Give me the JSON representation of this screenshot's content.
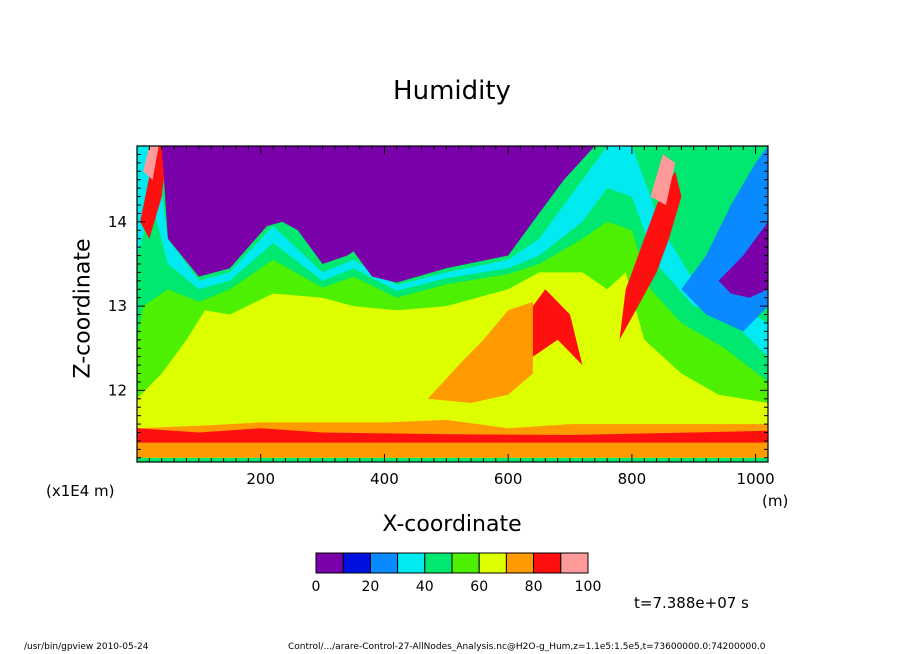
{
  "chart_data": {
    "type": "heatmap",
    "title": "Humidity",
    "xlabel": "X-coordinate",
    "ylabel": "Z-coordinate",
    "x_unit": "(m)",
    "y_unit": "(x1E4 m)",
    "xlim": [
      0,
      1020
    ],
    "ylim": [
      11.15,
      14.9
    ],
    "x_ticks": [
      200,
      400,
      600,
      800,
      1000
    ],
    "y_ticks": [
      12,
      13,
      14
    ],
    "colorbar": {
      "levels": [
        0,
        10,
        20,
        30,
        40,
        50,
        60,
        70,
        80,
        90,
        100
      ],
      "tick_labels": [
        "0",
        "20",
        "40",
        "60",
        "80",
        "100"
      ],
      "colors": [
        "#7a00aa",
        "#0010e0",
        "#0a8aff",
        "#00eaf0",
        "#00e870",
        "#4cf000",
        "#ddff00",
        "#ff9a00",
        "#ff1010",
        "#ff9a9a"
      ]
    },
    "regions": [
      {
        "level": 30,
        "points": [
          [
            0,
            11.2
          ],
          [
            1020,
            11.2
          ],
          [
            1020,
            12.8
          ],
          [
            900,
            13.3
          ],
          [
            850,
            13.9
          ],
          [
            800,
            14.9
          ],
          [
            760,
            14.9
          ],
          [
            720,
            14.5
          ],
          [
            650,
            13.8
          ],
          [
            600,
            13.55
          ],
          [
            500,
            13.4
          ],
          [
            420,
            13.25
          ],
          [
            350,
            13.55
          ],
          [
            300,
            13.4
          ],
          [
            220,
            13.95
          ],
          [
            150,
            13.4
          ],
          [
            100,
            13.3
          ],
          [
            50,
            13.8
          ],
          [
            30,
            14.9
          ],
          [
            0,
            14.9
          ]
        ]
      },
      {
        "level": 40,
        "points": [
          [
            0,
            11.2
          ],
          [
            1020,
            11.2
          ],
          [
            1020,
            12.4
          ],
          [
            950,
            12.9
          ],
          [
            900,
            13.0
          ],
          [
            840,
            13.5
          ],
          [
            800,
            14.3
          ],
          [
            760,
            14.4
          ],
          [
            720,
            14.0
          ],
          [
            650,
            13.6
          ],
          [
            600,
            13.45
          ],
          [
            500,
            13.33
          ],
          [
            420,
            13.18
          ],
          [
            350,
            13.45
          ],
          [
            300,
            13.3
          ],
          [
            220,
            13.75
          ],
          [
            150,
            13.3
          ],
          [
            100,
            13.2
          ],
          [
            50,
            13.5
          ],
          [
            25,
            14.2
          ],
          [
            0,
            13.6
          ]
        ]
      },
      {
        "level": 50,
        "points": [
          [
            0,
            11.2
          ],
          [
            1020,
            11.2
          ],
          [
            1020,
            12.1
          ],
          [
            950,
            12.5
          ],
          [
            880,
            12.8
          ],
          [
            830,
            13.2
          ],
          [
            800,
            13.9
          ],
          [
            760,
            14.0
          ],
          [
            720,
            13.8
          ],
          [
            650,
            13.5
          ],
          [
            600,
            13.38
          ],
          [
            500,
            13.26
          ],
          [
            420,
            13.1
          ],
          [
            350,
            13.35
          ],
          [
            300,
            13.22
          ],
          [
            220,
            13.55
          ],
          [
            150,
            13.2
          ],
          [
            100,
            13.05
          ],
          [
            50,
            13.2
          ],
          [
            10,
            13.0
          ],
          [
            0,
            12.6
          ]
        ]
      },
      {
        "level": 60,
        "points": [
          [
            0,
            11.2
          ],
          [
            1020,
            11.2
          ],
          [
            1020,
            11.85
          ],
          [
            940,
            11.95
          ],
          [
            880,
            12.2
          ],
          [
            820,
            12.6
          ],
          [
            790,
            13.4
          ],
          [
            760,
            13.2
          ],
          [
            720,
            13.4
          ],
          [
            650,
            13.4
          ],
          [
            600,
            13.2
          ],
          [
            500,
            13.0
          ],
          [
            420,
            12.95
          ],
          [
            350,
            13.0
          ],
          [
            300,
            13.1
          ],
          [
            220,
            13.15
          ],
          [
            150,
            12.9
          ],
          [
            110,
            12.95
          ],
          [
            80,
            12.6
          ],
          [
            40,
            12.2
          ],
          [
            0,
            11.9
          ]
        ]
      },
      {
        "level": 70,
        "points": [
          [
            0,
            11.2
          ],
          [
            1020,
            11.2
          ],
          [
            1020,
            11.6
          ],
          [
            800,
            11.6
          ],
          [
            700,
            11.6
          ],
          [
            600,
            11.55
          ],
          [
            500,
            11.65
          ],
          [
            400,
            11.62
          ],
          [
            300,
            11.62
          ],
          [
            200,
            11.62
          ],
          [
            100,
            11.58
          ],
          [
            0,
            11.55
          ]
        ]
      },
      {
        "level": 70,
        "points": [
          [
            470,
            11.9
          ],
          [
            520,
            12.3
          ],
          [
            560,
            12.6
          ],
          [
            600,
            12.95
          ],
          [
            640,
            13.05
          ],
          [
            640,
            12.2
          ],
          [
            600,
            11.95
          ],
          [
            540,
            11.85
          ]
        ]
      },
      {
        "level": 80,
        "points": [
          [
            0,
            11.38
          ],
          [
            1020,
            11.38
          ],
          [
            1020,
            11.52
          ],
          [
            900,
            11.5
          ],
          [
            700,
            11.47
          ],
          [
            500,
            11.48
          ],
          [
            300,
            11.5
          ],
          [
            200,
            11.55
          ],
          [
            100,
            11.5
          ],
          [
            0,
            11.55
          ]
        ]
      },
      {
        "level": 80,
        "points": [
          [
            640,
            12.4
          ],
          [
            680,
            12.6
          ],
          [
            720,
            12.3
          ],
          [
            700,
            12.9
          ],
          [
            660,
            13.2
          ],
          [
            640,
            13.0
          ]
        ]
      },
      {
        "level": 80,
        "points": [
          [
            780,
            12.6
          ],
          [
            810,
            13.0
          ],
          [
            840,
            13.4
          ],
          [
            860,
            13.8
          ],
          [
            880,
            14.3
          ],
          [
            870,
            14.6
          ],
          [
            840,
            14.2
          ],
          [
            810,
            13.6
          ],
          [
            790,
            13.2
          ]
        ]
      },
      {
        "level": 80,
        "points": [
          [
            5,
            14.0
          ],
          [
            30,
            14.9
          ],
          [
            50,
            14.9
          ],
          [
            40,
            14.3
          ],
          [
            20,
            13.8
          ]
        ]
      },
      {
        "level": 90,
        "points": [
          [
            10,
            14.6
          ],
          [
            20,
            14.9
          ],
          [
            35,
            14.9
          ],
          [
            25,
            14.5
          ]
        ]
      },
      {
        "level": 90,
        "points": [
          [
            830,
            14.3
          ],
          [
            850,
            14.8
          ],
          [
            870,
            14.7
          ],
          [
            855,
            14.2
          ]
        ]
      },
      {
        "level": 20,
        "points": [
          [
            880,
            13.2
          ],
          [
            920,
            13.6
          ],
          [
            960,
            14.2
          ],
          [
            1000,
            14.7
          ],
          [
            1020,
            14.9
          ],
          [
            1020,
            13.0
          ],
          [
            980,
            12.7
          ],
          [
            920,
            12.9
          ]
        ]
      },
      {
        "level": 0,
        "points": [
          [
            940,
            13.3
          ],
          [
            980,
            13.6
          ],
          [
            1010,
            13.9
          ],
          [
            1020,
            14.0
          ],
          [
            1020,
            13.2
          ],
          [
            990,
            13.1
          ],
          [
            960,
            13.15
          ]
        ]
      },
      {
        "level": 0,
        "points": [
          [
            40,
            14.9
          ],
          [
            50,
            13.8
          ],
          [
            100,
            13.35
          ],
          [
            150,
            13.45
          ],
          [
            210,
            13.95
          ],
          [
            235,
            14.0
          ],
          [
            260,
            13.9
          ],
          [
            300,
            13.5
          ],
          [
            340,
            13.6
          ],
          [
            350,
            13.65
          ],
          [
            380,
            13.35
          ],
          [
            420,
            13.28
          ],
          [
            500,
            13.45
          ],
          [
            600,
            13.6
          ],
          [
            640,
            14.0
          ],
          [
            690,
            14.5
          ],
          [
            740,
            14.9
          ]
        ]
      }
    ]
  },
  "time_label": "t=7.388e+07 s",
  "footer_left": "/usr/bin/gpview   2010-05-24",
  "footer_right": "Control/.../arare-Control-27-AllNodes_Analysis.nc@H2O-g_Hum,z=1.1e5:1.5e5,t=73600000.0:74200000.0"
}
